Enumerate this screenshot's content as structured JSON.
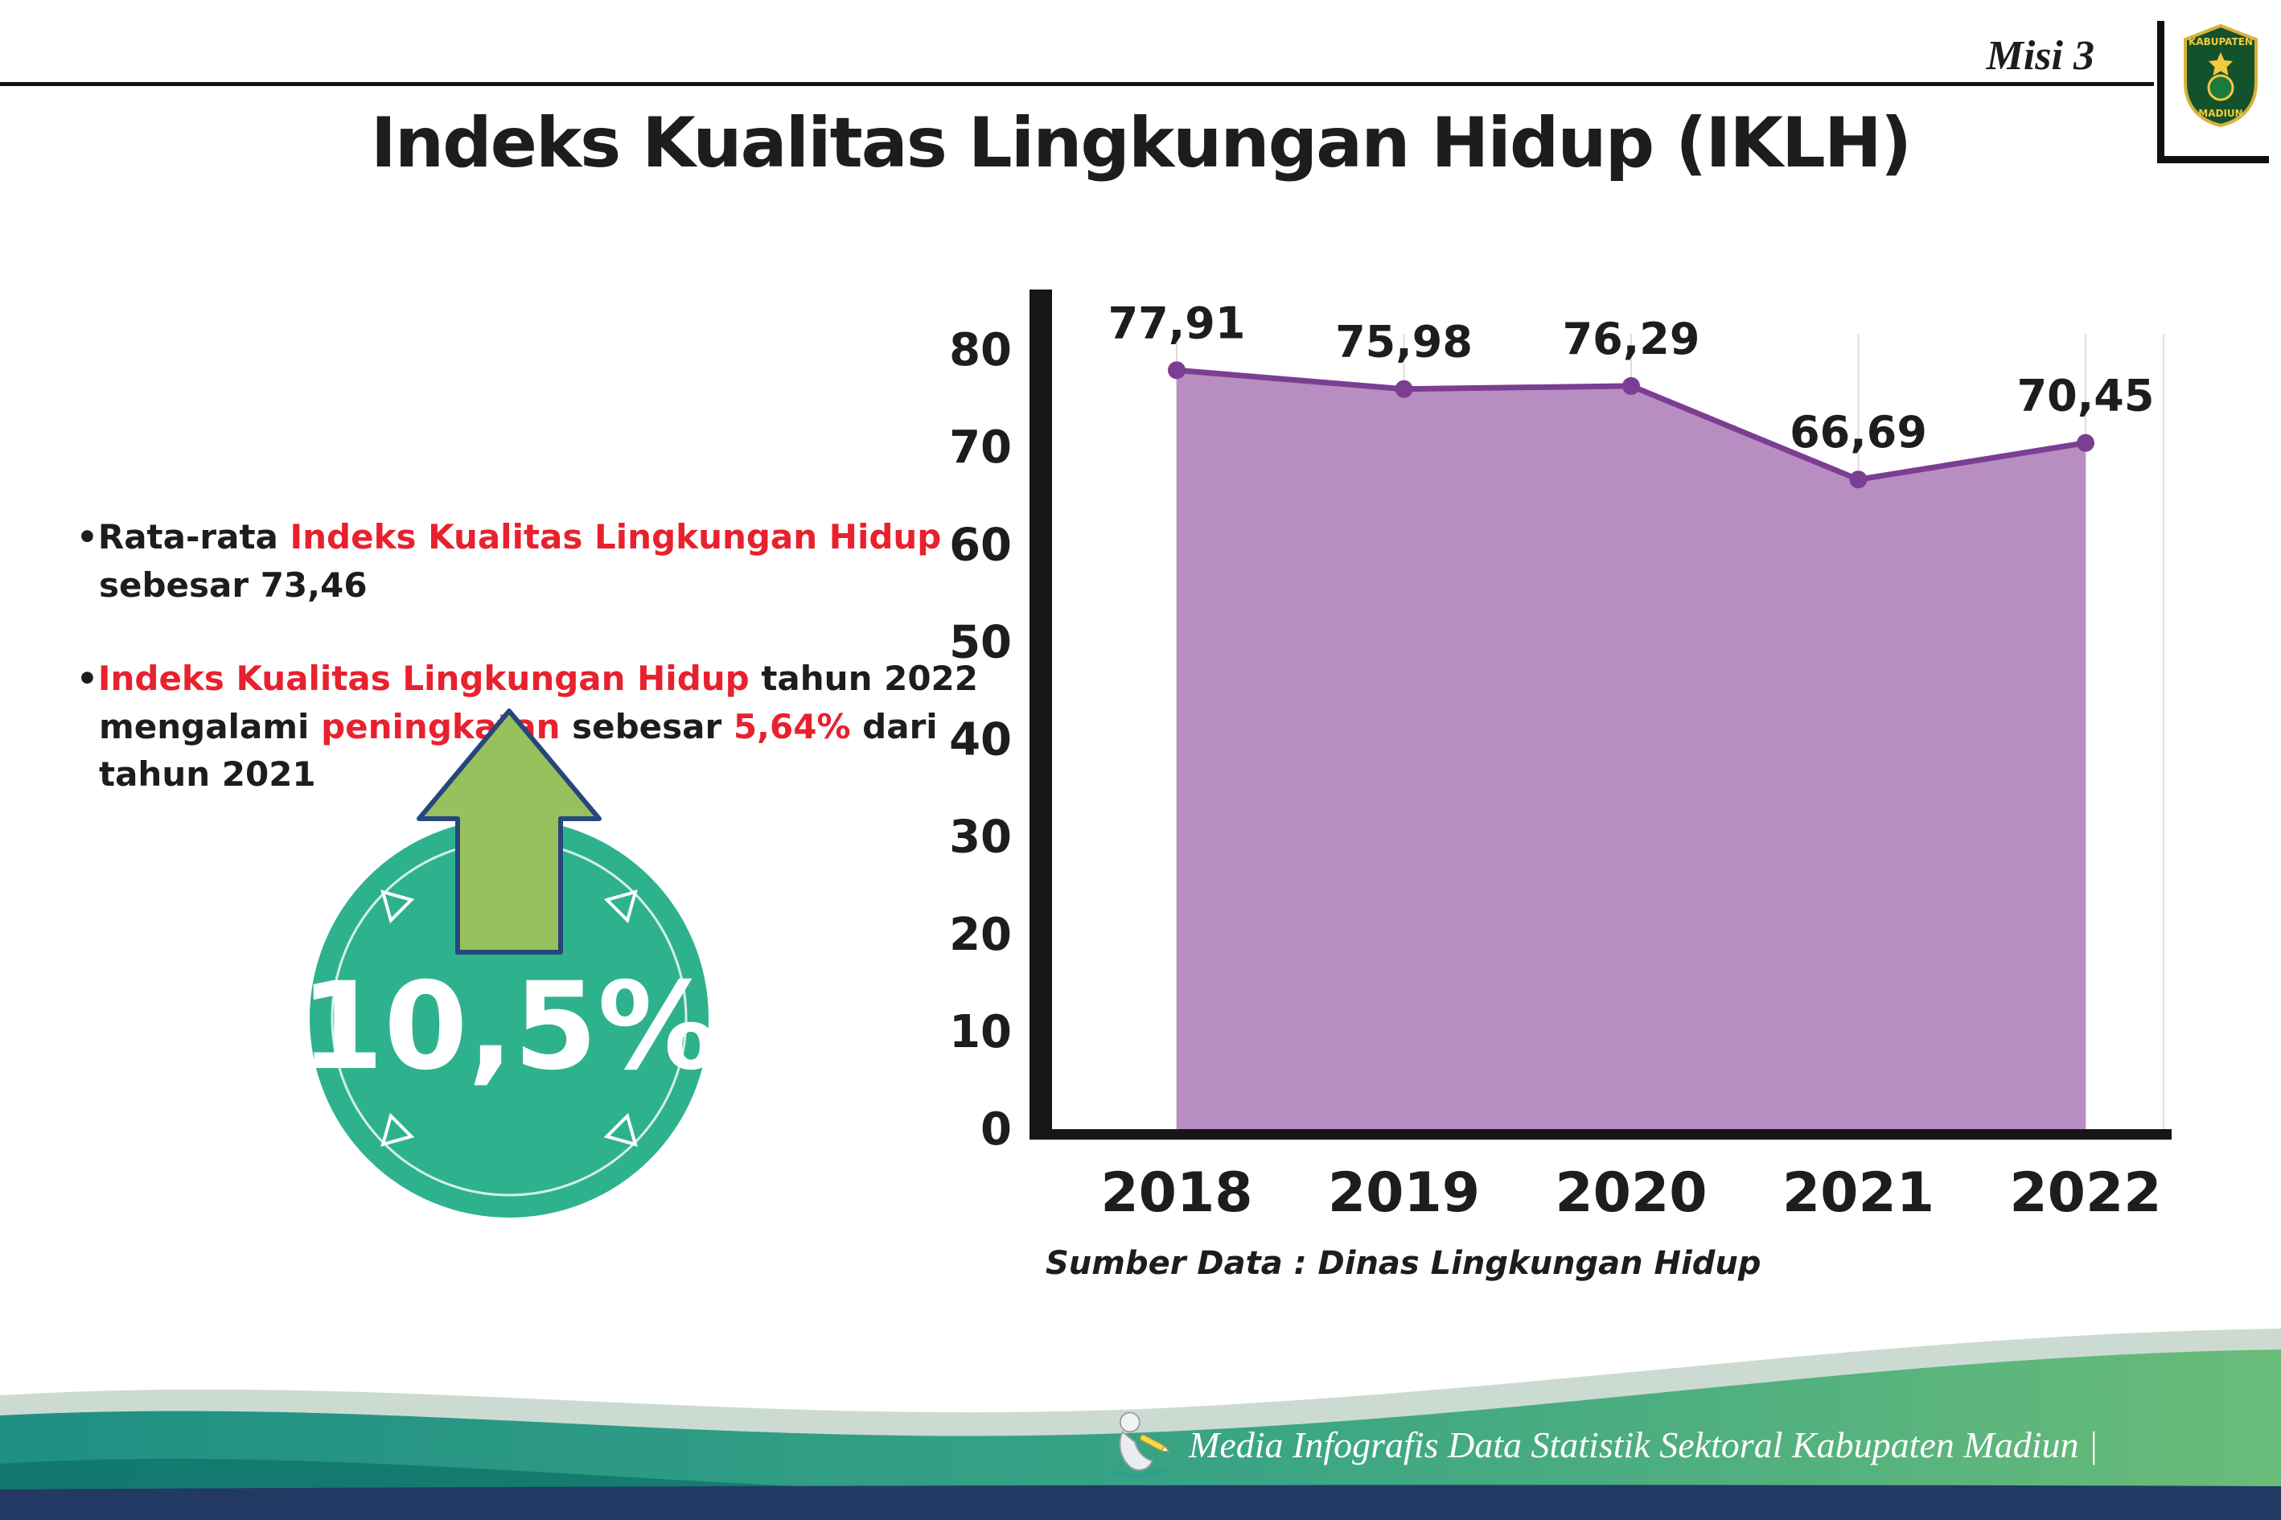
{
  "header": {
    "misi_label": "Misi 3",
    "title": "Indeks Kualitas Lingkungan Hidup (IKLH)",
    "logo_top": "KABUPATEN",
    "logo_bottom": "MADIUN"
  },
  "bullets": {
    "marker": "•",
    "b1": {
      "s1": "Rata-rata ",
      "s2": "Indeks Kualitas Lingkungan Hidup",
      "s3": " sebesar 73,46"
    },
    "b2": {
      "s1": "Indeks Kualitas Lingkungan Hidup",
      "s2": " tahun 2022 mengalami ",
      "s3": "peningkatan",
      "s4": " sebesar ",
      "s5": "5,64%",
      "s6": " dari tahun 2021"
    }
  },
  "badge": {
    "value": "10,5%"
  },
  "chart_data": {
    "type": "area",
    "title": "Indeks Kualitas Lingkungan Hidup (IKLH)",
    "categories": [
      "2018",
      "2019",
      "2020",
      "2021",
      "2022"
    ],
    "values": [
      77.91,
      75.98,
      76.29,
      66.69,
      70.45
    ],
    "value_labels": [
      "77,91",
      "75,98",
      "76,29",
      "66,69",
      "70,45"
    ],
    "ylim": [
      0,
      80
    ],
    "yticks": [
      0,
      10,
      20,
      30,
      40,
      50,
      60,
      70,
      80
    ],
    "grid": "vertical-light",
    "legend": "none",
    "area_color": "#b88dc2",
    "line_color": "#7b3e92",
    "axis_color": "#161616",
    "grid_color": "#dcdcdc",
    "source": "Sumber Data : Dinas Lingkungan Hidup"
  },
  "footer": {
    "credit": "Media Infografis Data Statistik Sektoral Kabupaten Madiun |"
  },
  "colors": {
    "accent_red": "#e8212e",
    "badge_teal": "#2eb28e",
    "arrow_green": "#97c15c",
    "arrow_outline_navy": "#25477c",
    "footer_teal": "#1e8f83",
    "footer_green": "#6abc79",
    "footer_navy": "#223a63",
    "text_black": "#1d1d1b"
  }
}
